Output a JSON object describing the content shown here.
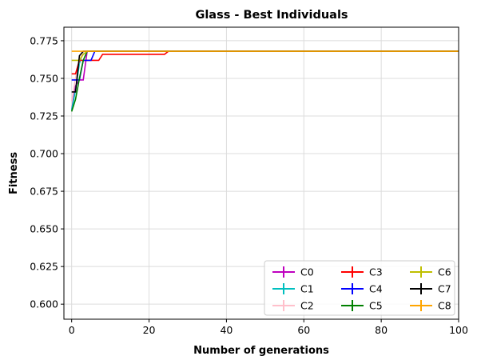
{
  "chart_data": {
    "type": "line",
    "title": "Glass - Best Individuals",
    "xlabel": "Number of generations",
    "ylabel": "Fitness",
    "xlim": [
      -2,
      100
    ],
    "ylim": [
      0.59,
      0.784
    ],
    "xticks": [
      0,
      20,
      40,
      60,
      80,
      100
    ],
    "yticks": [
      0.6,
      0.625,
      0.65,
      0.675,
      0.7,
      0.725,
      0.75,
      0.775
    ],
    "grid": true,
    "legend": {
      "placement": "lower-right",
      "columns": 3
    },
    "series": [
      {
        "name": "C0",
        "color": "#bf00bf",
        "x": [
          0,
          1,
          2,
          3,
          4,
          5,
          100
        ],
        "y": [
          0.729,
          0.745,
          0.749,
          0.749,
          0.768,
          0.768,
          0.768
        ]
      },
      {
        "name": "C1",
        "color": "#00bfbf",
        "x": [
          0,
          1,
          2,
          3,
          100
        ],
        "y": [
          0.729,
          0.742,
          0.76,
          0.768,
          0.768
        ]
      },
      {
        "name": "C2",
        "color": "#ffc0cb",
        "x": [
          0,
          1,
          2,
          3,
          100
        ],
        "y": [
          0.735,
          0.75,
          0.762,
          0.768,
          0.768
        ]
      },
      {
        "name": "C3",
        "color": "#ff0000",
        "x": [
          0,
          1,
          2,
          7,
          8,
          24,
          25,
          100
        ],
        "y": [
          0.753,
          0.753,
          0.762,
          0.762,
          0.766,
          0.766,
          0.768,
          0.768
        ]
      },
      {
        "name": "C4",
        "color": "#0000ff",
        "x": [
          0,
          2,
          3,
          5,
          6,
          100
        ],
        "y": [
          0.749,
          0.749,
          0.762,
          0.762,
          0.768,
          0.768
        ]
      },
      {
        "name": "C5",
        "color": "#008000",
        "x": [
          0,
          1,
          2,
          3,
          4,
          100
        ],
        "y": [
          0.728,
          0.736,
          0.75,
          0.762,
          0.768,
          0.768
        ]
      },
      {
        "name": "C6",
        "color": "#bfbf00",
        "x": [
          0,
          1,
          2,
          3,
          4,
          100
        ],
        "y": [
          0.762,
          0.762,
          0.762,
          0.766,
          0.768,
          0.768
        ]
      },
      {
        "name": "C7",
        "color": "#000000",
        "x": [
          0,
          1,
          2,
          3,
          100
        ],
        "y": [
          0.741,
          0.741,
          0.765,
          0.768,
          0.768
        ]
      },
      {
        "name": "C8",
        "color": "#ffa500",
        "x": [
          0,
          100
        ],
        "y": [
          0.768,
          0.768
        ]
      }
    ]
  }
}
